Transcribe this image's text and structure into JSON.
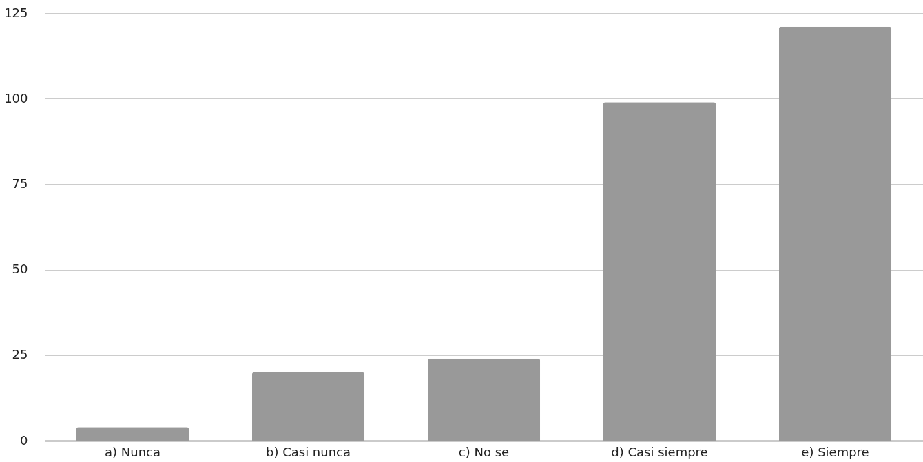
{
  "chart_data": {
    "type": "bar",
    "categories": [
      "a) Nunca",
      "b) Casi nunca",
      "c) No se",
      "d) Casi siempre",
      "e) Siempre"
    ],
    "values": [
      4,
      20,
      24,
      99,
      121
    ],
    "color": "#999999",
    "ylim": [
      0,
      125
    ],
    "yticks": [
      0,
      25,
      50,
      75,
      100,
      125
    ],
    "grid": "y"
  }
}
